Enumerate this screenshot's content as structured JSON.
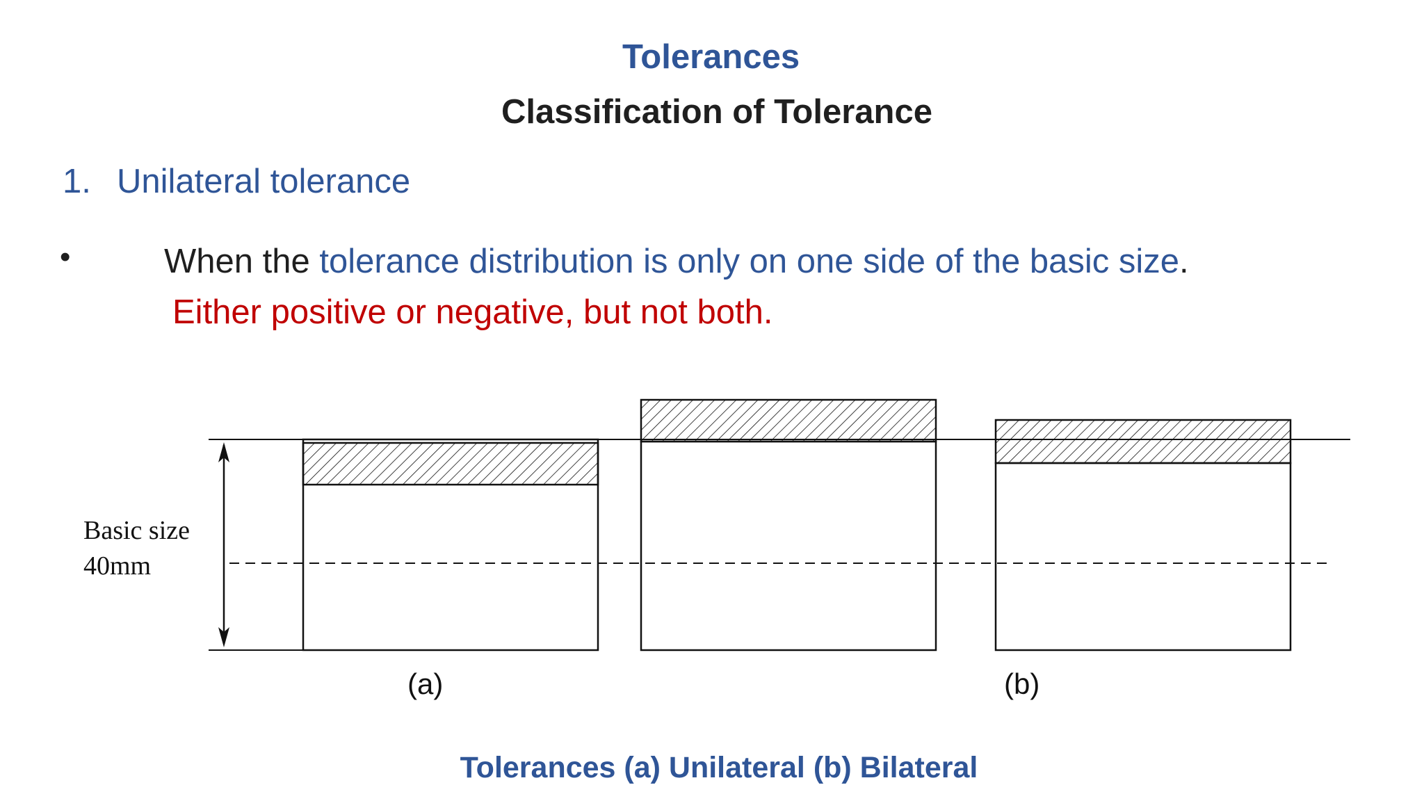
{
  "slide": {
    "title": "Tolerances",
    "subtitle": "Classification of Tolerance"
  },
  "section": {
    "number": "1.",
    "heading": "Unilateral tolerance"
  },
  "bullet": {
    "prefix": "When the ",
    "highlight": "tolerance distribution is only on one side of the basic size",
    "suffix": ".",
    "red_text": "Either positive or negative, but not both."
  },
  "figure": {
    "basic_size_label": "Basic size",
    "size_value": "40mm",
    "label_a": "(a)",
    "label_b": "(b)",
    "caption": "Tolerances (a) Unilateral (b) Bilateral"
  },
  "colors": {
    "heading_blue": "#2f5597",
    "emphasis_red": "#c00000",
    "body_text": "#1f1f1f"
  }
}
